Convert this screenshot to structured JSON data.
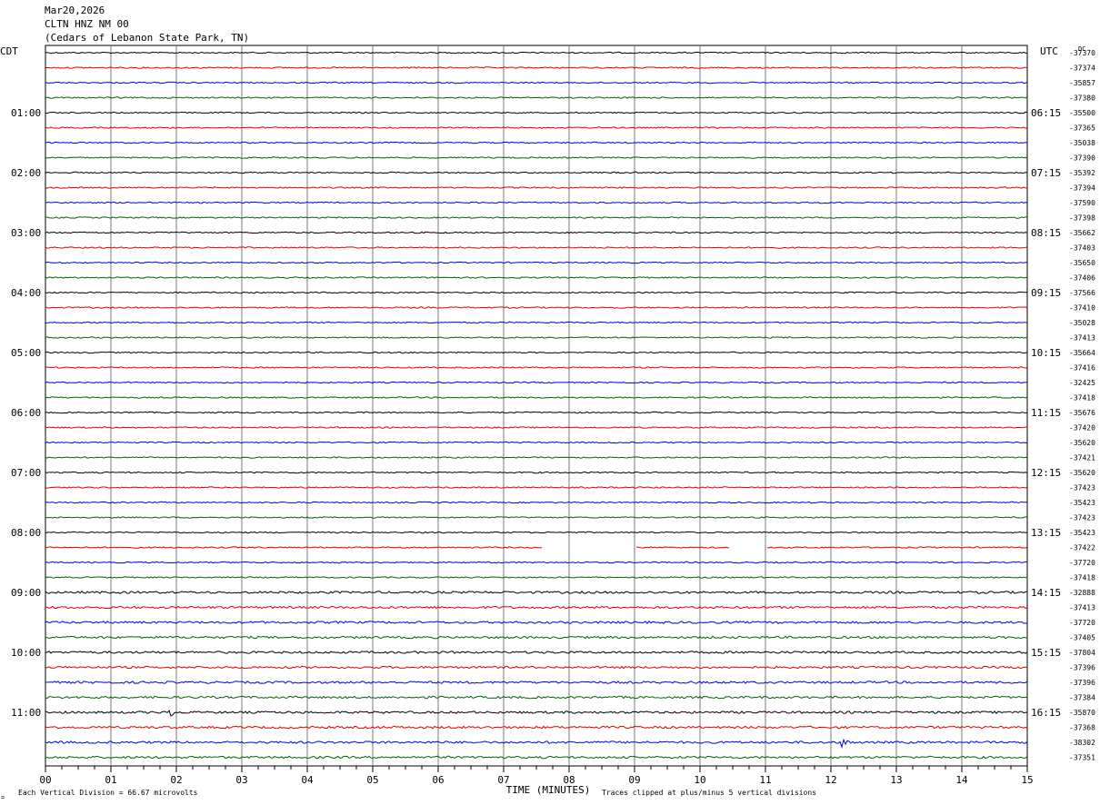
{
  "header": {
    "date": "Mar20,2026",
    "station": "CLTN HNZ NM 00",
    "location": "(Cedars of Lebanon State Park, TN)"
  },
  "chart_data": {
    "type": "line",
    "subtype": "helicorder",
    "left_axis_label": "CDT",
    "right_axis_label": "UTC",
    "corner_label": "DC",
    "xlabel": "TIME (MINUTES)",
    "x_ticks": [
      "00",
      "01",
      "02",
      "03",
      "04",
      "05",
      "06",
      "07",
      "08",
      "09",
      "10",
      "11",
      "12",
      "13",
      "14",
      "15"
    ],
    "xlim": [
      0,
      15
    ],
    "left_hour_labels": [
      "01:00",
      "02:00",
      "03:00",
      "04:00",
      "05:00",
      "06:00",
      "07:00",
      "08:00",
      "09:00",
      "10:00",
      "11:00"
    ],
    "right_hour_labels": [
      "06:15",
      "07:15",
      "08:15",
      "09:15",
      "10:15",
      "11:15",
      "12:15",
      "13:15",
      "14:15",
      "15:15",
      "16:15"
    ],
    "trace_colors": [
      "#000000",
      "#e00000",
      "#0000e0",
      "#006400"
    ],
    "dc_offsets": [
      "-37370",
      "-37374",
      "-35857",
      "-37380",
      "-35500",
      "-37365",
      "-35038",
      "-37390",
      "-35392",
      "-37394",
      "-37590",
      "-37398",
      "-35662",
      "-37403",
      "-35650",
      "-37406",
      "-37566",
      "-37410",
      "-35028",
      "-37413",
      "-35664",
      "-37416",
      "-32425",
      "-37418",
      "-35676",
      "-37420",
      "-35620",
      "-37421",
      "-35620",
      "-37423",
      "-35423",
      "-37423",
      "-35423",
      "-37422",
      "-37720",
      "-37418",
      "-32888",
      "-37413",
      "-37720",
      "-37405",
      "-37804",
      "-37396",
      "-37396",
      "-37384",
      "-35870",
      "-37368",
      "-38302",
      "-37351"
    ],
    "gaps": [
      {
        "trace": 33,
        "from_min": 7.6,
        "to_min": 9.0
      },
      {
        "trace": 33,
        "from_min": 10.45,
        "to_min": 11.0
      }
    ],
    "events": [
      {
        "trace": 44,
        "minute": 1.9,
        "amplitude": 12
      },
      {
        "trace": 46,
        "minute": 12.2,
        "amplitude": 14
      },
      {
        "trace": 46,
        "minute": 14.7,
        "amplitude": 6
      }
    ],
    "footer_left": "Each Vertical Division =   66.67 microvolts",
    "footer_right": "Traces clipped at plus/minus 5 vertical divisions",
    "footer_mark": "="
  }
}
